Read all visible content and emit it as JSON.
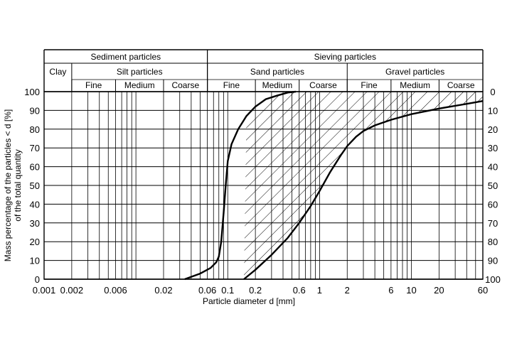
{
  "chart_data": {
    "type": "area",
    "x_scale": "log",
    "xlim": [
      0.001,
      60
    ],
    "ylim": [
      0,
      100
    ],
    "ylim_right": [
      100,
      0
    ],
    "grid": true,
    "xlabel": "Particle diameter d [mm]",
    "ylabel_lines": [
      "Mass percentage of the particles < d [%]",
      "of the total quantity"
    ],
    "x_tick_values": [
      0.001,
      0.002,
      0.006,
      0.02,
      0.06,
      0.1,
      0.2,
      0.6,
      1,
      2,
      6,
      10,
      20,
      60
    ],
    "x_tick_labels": [
      "0.001",
      "0.002",
      "0.006",
      "0.02",
      "0.06",
      "0.1",
      "0.2",
      "0.6",
      "1",
      "2",
      "6",
      "10",
      "20",
      "60"
    ],
    "y_ticks_left": [
      "0",
      "10",
      "20",
      "30",
      "40",
      "50",
      "60",
      "70",
      "80",
      "90",
      "100"
    ],
    "y_ticks_right": [
      "100",
      "90",
      "80",
      "70",
      "60",
      "50",
      "40",
      "30",
      "20",
      "10",
      "0"
    ],
    "header": {
      "row1": [
        {
          "label": "Sediment particles",
          "from": 0.001,
          "to": 0.06
        },
        {
          "label": "Sieving particles",
          "from": 0.06,
          "to": 60
        }
      ],
      "row2": [
        {
          "label": "Clay",
          "from": 0.001,
          "to": 0.002
        },
        {
          "label": "Silt particles",
          "from": 0.002,
          "to": 0.06
        },
        {
          "label": "Sand particles",
          "from": 0.06,
          "to": 2
        },
        {
          "label": "Gravel particles",
          "from": 2,
          "to": 60
        }
      ],
      "row3": [
        {
          "label": "Fine",
          "from": 0.002,
          "to": 0.006
        },
        {
          "label": "Medium",
          "from": 0.006,
          "to": 0.02
        },
        {
          "label": "Coarse",
          "from": 0.02,
          "to": 0.06
        },
        {
          "label": "Fine",
          "from": 0.06,
          "to": 0.2
        },
        {
          "label": "Medium",
          "from": 0.2,
          "to": 0.6
        },
        {
          "label": "Coarse",
          "from": 0.6,
          "to": 2
        },
        {
          "label": "Fine",
          "from": 2,
          "to": 6
        },
        {
          "label": "Medium",
          "from": 6,
          "to": 20
        },
        {
          "label": "Coarse",
          "from": 20,
          "to": 60
        }
      ]
    },
    "series": [
      {
        "x": [
          0.034,
          0.05,
          0.065,
          0.075,
          0.08,
          0.085,
          0.09,
          0.095,
          0.1,
          0.11,
          0.13,
          0.16,
          0.2,
          0.26,
          0.35,
          0.45,
          0.55
        ],
        "values": [
          0,
          3,
          6,
          9,
          12,
          20,
          35,
          50,
          63,
          72,
          80,
          87,
          92,
          96,
          98,
          99.5,
          100
        ]
      },
      {
        "x": [
          0.15,
          0.2,
          0.3,
          0.45,
          0.6,
          0.8,
          1,
          1.3,
          1.7,
          2,
          2.5,
          3,
          4,
          6,
          10,
          20,
          40,
          60
        ],
        "values": [
          0,
          5,
          13,
          22,
          30,
          39,
          47,
          57,
          66,
          71,
          76,
          79,
          82,
          85,
          88,
          91,
          93.5,
          95
        ]
      }
    ]
  }
}
